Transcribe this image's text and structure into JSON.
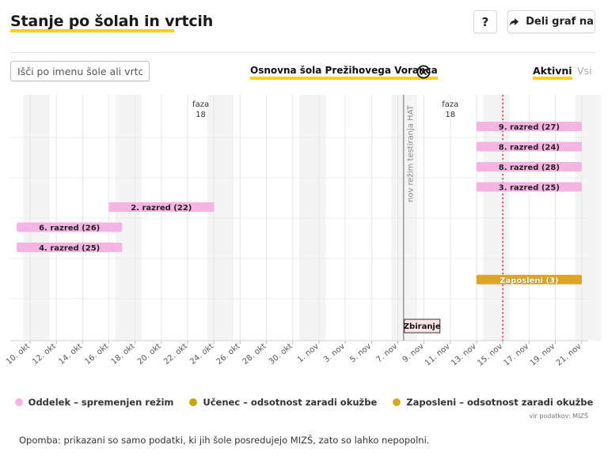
{
  "header": {
    "title": "Stanje po šolah in vrtcih",
    "help_label": "?",
    "share_label": "Deli graf na"
  },
  "filters": {
    "search_placeholder": "Išči po imenu šole ali vrtca",
    "selected_school": "Osnovna šola Prežihovega Voranca",
    "tab_active": "Aktivni",
    "tab_other": "Vsi"
  },
  "colors": {
    "accent": "#ffd100",
    "class_bar": "#f4b5e2",
    "employee_bar": "#dba628",
    "student_dot": "#c9a50c",
    "today_line": "#e8202a"
  },
  "chart_data": {
    "type": "timeline",
    "x_tick_labels": [
      "10. okt",
      "12. okt",
      "14. okt",
      "16. okt",
      "18. okt",
      "20. okt",
      "22. okt",
      "24. okt",
      "26. okt",
      "28. okt",
      "30. okt",
      "1. nov",
      "3. nov",
      "5. nov",
      "7. nov",
      "9. nov",
      "11. nov",
      "13. nov",
      "15. nov",
      "17. nov",
      "19. nov",
      "21. nov"
    ],
    "x_range": [
      "2020-10-09",
      "2020-11-22"
    ],
    "today": "2020-11-15",
    "phases": [
      {
        "label": "faza",
        "number": "18",
        "date": "2020-10-23"
      },
      {
        "label": "faza",
        "number": "18",
        "date": "2020-11-11"
      }
    ],
    "events": [
      {
        "label": "nov režim testiranja HAT",
        "date": "2020-11-08"
      },
      {
        "label": "Zbiranje",
        "date": "2020-11-08"
      }
    ],
    "bars": [
      {
        "label": "9. razred (27)",
        "start": "2020-11-13",
        "end": "2020-11-22",
        "row": 1,
        "kind": "class"
      },
      {
        "label": "8. razred (24)",
        "start": "2020-11-13",
        "end": "2020-11-22",
        "row": 2,
        "kind": "class"
      },
      {
        "label": "8. razred (28)",
        "start": "2020-11-13",
        "end": "2020-11-22",
        "row": 3,
        "kind": "class"
      },
      {
        "label": "3. razred (25)",
        "start": "2020-11-13",
        "end": "2020-11-22",
        "row": 4,
        "kind": "class"
      },
      {
        "label": "2. razred (22)",
        "start": "2020-10-16",
        "end": "2020-10-25",
        "row": 5,
        "kind": "class"
      },
      {
        "label": "6. razred (26)",
        "start": "2020-10-09",
        "end": "2020-10-18",
        "row": 6,
        "kind": "class"
      },
      {
        "label": "4. razred (25)",
        "start": "2020-10-09",
        "end": "2020-10-18",
        "row": 7,
        "kind": "class"
      },
      {
        "label": "Zaposleni (3)",
        "start": "2020-11-13",
        "end": "2020-11-22",
        "row": 8.6,
        "kind": "employee"
      }
    ],
    "legend": [
      {
        "label": "Oddelek – spremenjen režim",
        "color": "#f4b5e2"
      },
      {
        "label": "Učenec – odsotnost zaradi okužbe",
        "color": "#c9a50c"
      },
      {
        "label": "Zaposleni – odsotnost zaradi okužbe",
        "color": "#dba628"
      }
    ]
  },
  "footer": {
    "source": "vir podatkov: MIZŠ",
    "note": "Opomba: prikazani so samo podatki, ki jih šole posredujejo MIZŠ, zato so lahko nepopolni."
  }
}
